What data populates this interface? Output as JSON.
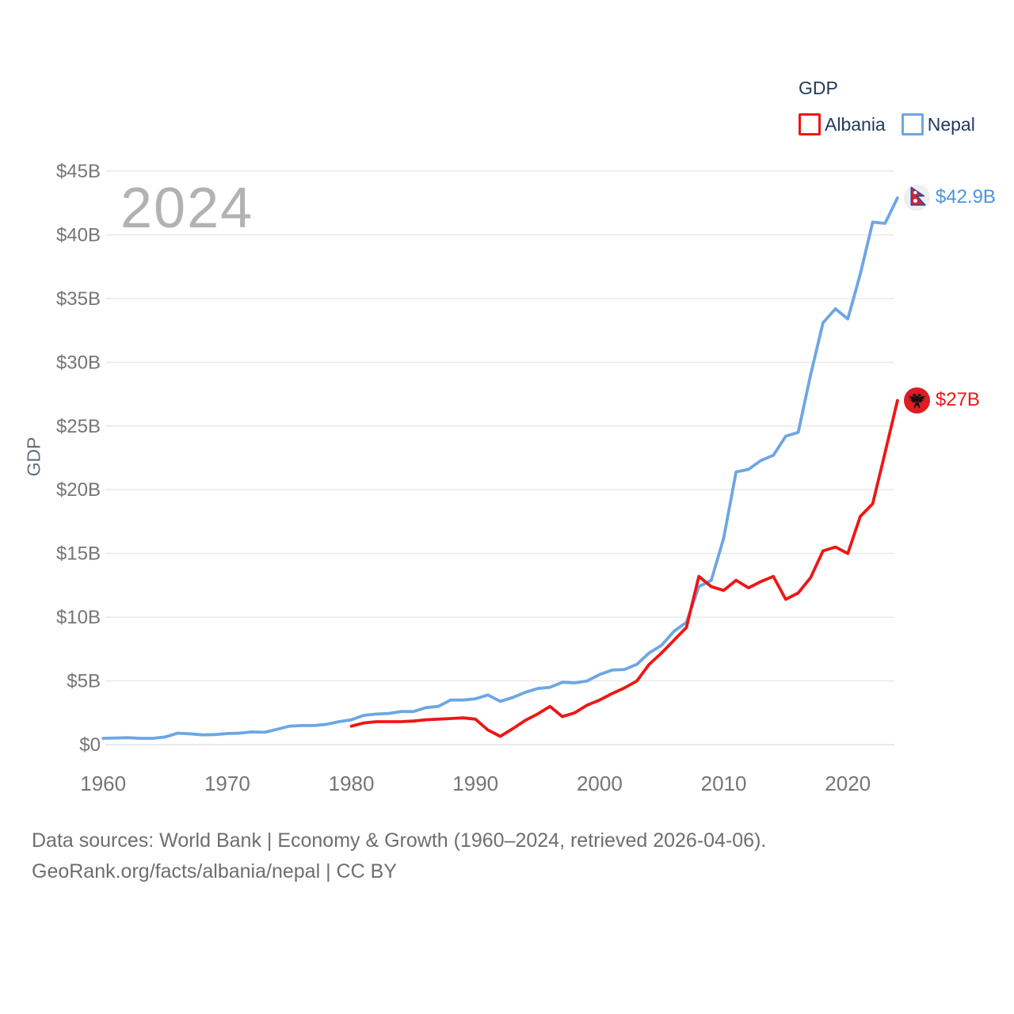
{
  "legend": {
    "title": "GDP",
    "items": [
      {
        "label": "Albania"
      },
      {
        "label": "Nepal"
      }
    ]
  },
  "watermark": "2024",
  "chart_data": {
    "type": "line",
    "ylabel": "GDP",
    "xlabel": "",
    "x_range": [
      1960,
      2024
    ],
    "ylim": [
      0,
      45
    ],
    "grid": true,
    "legend_position": "top-right",
    "watermark_year": "2024",
    "y_ticks": [
      {
        "label": "$45B",
        "value": 45
      },
      {
        "label": "$40B",
        "value": 40
      },
      {
        "label": "$35B",
        "value": 35
      },
      {
        "label": "$30B",
        "value": 30
      },
      {
        "label": "$25B",
        "value": 25
      },
      {
        "label": "$20B",
        "value": 20
      },
      {
        "label": "$15B",
        "value": 15
      },
      {
        "label": "$10B",
        "value": 10
      },
      {
        "label": "$5B",
        "value": 5
      },
      {
        "label": "$0",
        "value": 0
      }
    ],
    "x_ticks": [
      {
        "label": "1960",
        "value": 1960
      },
      {
        "label": "1970",
        "value": 1970
      },
      {
        "label": "1980",
        "value": 1980
      },
      {
        "label": "1990",
        "value": 1990
      },
      {
        "label": "2000",
        "value": 2000
      },
      {
        "label": "2010",
        "value": 2010
      },
      {
        "label": "2020",
        "value": 2020
      }
    ],
    "series": [
      {
        "name": "Albania",
        "color": "#f01515",
        "label_color": "#f01515",
        "start_year": 1980,
        "end_label": "$27B",
        "end_value": 27.0,
        "values": [
          1.45,
          1.7,
          1.8,
          1.8,
          1.8,
          1.85,
          1.95,
          2.0,
          2.05,
          2.1,
          2.0,
          1.15,
          0.65,
          1.25,
          1.9,
          2.4,
          3.0,
          2.2,
          2.5,
          3.1,
          3.5,
          4.0,
          4.45,
          5.0,
          6.3,
          7.2,
          8.2,
          9.2,
          13.2,
          12.4,
          12.1,
          12.9,
          12.3,
          12.8,
          13.2,
          11.4,
          11.9,
          13.1,
          15.2,
          15.5,
          15.0,
          17.9,
          18.9,
          22.9,
          27.0
        ]
      },
      {
        "name": "Nepal",
        "color": "#6da6e4",
        "label_color": "#4b94dd",
        "start_year": 1960,
        "end_label": "$42.9B",
        "end_value": 42.9,
        "values": [
          0.5,
          0.52,
          0.55,
          0.5,
          0.5,
          0.6,
          0.9,
          0.85,
          0.77,
          0.79,
          0.87,
          0.9,
          1.0,
          0.97,
          1.2,
          1.45,
          1.5,
          1.5,
          1.6,
          1.8,
          1.95,
          2.3,
          2.4,
          2.45,
          2.6,
          2.6,
          2.9,
          3.0,
          3.5,
          3.5,
          3.6,
          3.9,
          3.4,
          3.7,
          4.1,
          4.4,
          4.5,
          4.9,
          4.85,
          5.0,
          5.5,
          5.85,
          5.9,
          6.3,
          7.2,
          7.8,
          8.9,
          9.6,
          12.4,
          12.9,
          16.2,
          21.4,
          21.6,
          22.3,
          22.7,
          24.2,
          24.5,
          29.0,
          33.1,
          34.2,
          33.4,
          36.9,
          41.0,
          40.9,
          42.9
        ]
      }
    ]
  },
  "footer": {
    "line1": "Data sources: World Bank | Economy & Growth (1960–2024, retrieved 2026-04-06).",
    "line2": "GeoRank.org/facts/albania/nepal | CC BY"
  }
}
